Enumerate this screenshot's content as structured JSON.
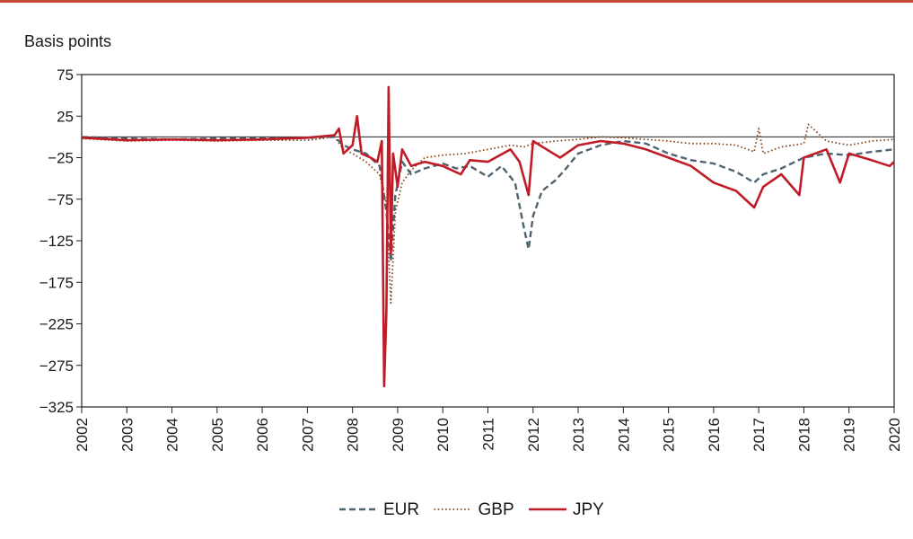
{
  "chart_data": {
    "type": "line",
    "ylabel": "Basis points",
    "ylim": [
      -325,
      75
    ],
    "yticks": [
      75,
      25,
      -25,
      -75,
      -125,
      -175,
      -225,
      -275,
      -325
    ],
    "xlim": [
      2002,
      2020
    ],
    "xticks": [
      "2002",
      "2003",
      "2004",
      "2005",
      "2006",
      "2007",
      "2008",
      "2009",
      "2010",
      "2011",
      "2012",
      "2013",
      "2014",
      "2015",
      "2016",
      "2017",
      "2018",
      "2019",
      "2020"
    ],
    "zero_line": 0,
    "grid": false,
    "legend_position": "bottom",
    "series": [
      {
        "name": "EUR",
        "color": "#4f6470",
        "style": "dashed",
        "points": [
          [
            2002,
            0
          ],
          [
            2003,
            -2
          ],
          [
            2004,
            -3
          ],
          [
            2005,
            -2
          ],
          [
            2006,
            -2
          ],
          [
            2007,
            -1
          ],
          [
            2007.6,
            0
          ],
          [
            2007.8,
            -10
          ],
          [
            2008.0,
            -15
          ],
          [
            2008.3,
            -20
          ],
          [
            2008.6,
            -35
          ],
          [
            2008.75,
            -90
          ],
          [
            2008.85,
            -150
          ],
          [
            2008.95,
            -70
          ],
          [
            2009.1,
            -30
          ],
          [
            2009.3,
            -45
          ],
          [
            2009.6,
            -38
          ],
          [
            2010.0,
            -32
          ],
          [
            2010.3,
            -38
          ],
          [
            2010.6,
            -35
          ],
          [
            2011.0,
            -48
          ],
          [
            2011.3,
            -35
          ],
          [
            2011.6,
            -55
          ],
          [
            2011.8,
            -110
          ],
          [
            2011.9,
            -135
          ],
          [
            2012.0,
            -95
          ],
          [
            2012.2,
            -65
          ],
          [
            2012.5,
            -52
          ],
          [
            2012.7,
            -40
          ],
          [
            2013.0,
            -20
          ],
          [
            2013.5,
            -10
          ],
          [
            2014.0,
            -5
          ],
          [
            2014.5,
            -8
          ],
          [
            2015.0,
            -20
          ],
          [
            2015.5,
            -28
          ],
          [
            2016.0,
            -32
          ],
          [
            2016.5,
            -42
          ],
          [
            2016.9,
            -55
          ],
          [
            2017.1,
            -45
          ],
          [
            2017.5,
            -38
          ],
          [
            2018.0,
            -25
          ],
          [
            2018.5,
            -20
          ],
          [
            2019.0,
            -22
          ],
          [
            2019.5,
            -18
          ],
          [
            2020.0,
            -15
          ]
        ]
      },
      {
        "name": "GBP",
        "color": "#8a4a1c",
        "style": "dotted",
        "points": [
          [
            2002,
            -2
          ],
          [
            2003,
            -5
          ],
          [
            2004,
            -4
          ],
          [
            2005,
            -5
          ],
          [
            2006,
            -4
          ],
          [
            2007,
            -4
          ],
          [
            2007.6,
            0
          ],
          [
            2007.8,
            -15
          ],
          [
            2008.0,
            -20
          ],
          [
            2008.3,
            -30
          ],
          [
            2008.6,
            -45
          ],
          [
            2008.75,
            -80
          ],
          [
            2008.85,
            -200
          ],
          [
            2008.95,
            -90
          ],
          [
            2009.1,
            -55
          ],
          [
            2009.3,
            -40
          ],
          [
            2009.6,
            -25
          ],
          [
            2010.0,
            -22
          ],
          [
            2010.5,
            -20
          ],
          [
            2011.0,
            -15
          ],
          [
            2011.5,
            -10
          ],
          [
            2011.8,
            -12
          ],
          [
            2012.0,
            -8
          ],
          [
            2012.5,
            -5
          ],
          [
            2013.0,
            -3
          ],
          [
            2013.5,
            0
          ],
          [
            2014.0,
            -1
          ],
          [
            2014.5,
            -3
          ],
          [
            2015.0,
            -5
          ],
          [
            2015.5,
            -8
          ],
          [
            2016.0,
            -8
          ],
          [
            2016.5,
            -10
          ],
          [
            2016.9,
            -18
          ],
          [
            2017.0,
            10
          ],
          [
            2017.1,
            -20
          ],
          [
            2017.5,
            -12
          ],
          [
            2018.0,
            -8
          ],
          [
            2018.1,
            15
          ],
          [
            2018.5,
            -5
          ],
          [
            2019.0,
            -10
          ],
          [
            2019.5,
            -5
          ],
          [
            2020.0,
            -3
          ]
        ]
      },
      {
        "name": "JPY",
        "color": "#c01c28",
        "style": "solid",
        "points": [
          [
            2002,
            -1
          ],
          [
            2003,
            -4
          ],
          [
            2004,
            -3
          ],
          [
            2005,
            -4
          ],
          [
            2006,
            -3
          ],
          [
            2007,
            -1
          ],
          [
            2007.6,
            2
          ],
          [
            2007.7,
            10
          ],
          [
            2007.8,
            -20
          ],
          [
            2008.0,
            -10
          ],
          [
            2008.1,
            25
          ],
          [
            2008.2,
            -20
          ],
          [
            2008.4,
            -25
          ],
          [
            2008.55,
            -30
          ],
          [
            2008.65,
            -5
          ],
          [
            2008.7,
            -300
          ],
          [
            2008.75,
            -210
          ],
          [
            2008.8,
            60
          ],
          [
            2008.85,
            -140
          ],
          [
            2008.9,
            -20
          ],
          [
            2009.0,
            -60
          ],
          [
            2009.1,
            -15
          ],
          [
            2009.3,
            -35
          ],
          [
            2009.6,
            -30
          ],
          [
            2010.0,
            -35
          ],
          [
            2010.4,
            -45
          ],
          [
            2010.6,
            -28
          ],
          [
            2011.0,
            -30
          ],
          [
            2011.5,
            -15
          ],
          [
            2011.7,
            -30
          ],
          [
            2011.9,
            -70
          ],
          [
            2012.0,
            -5
          ],
          [
            2012.3,
            -15
          ],
          [
            2012.6,
            -25
          ],
          [
            2013.0,
            -10
          ],
          [
            2013.5,
            -5
          ],
          [
            2014.0,
            -8
          ],
          [
            2014.5,
            -15
          ],
          [
            2015.0,
            -25
          ],
          [
            2015.5,
            -35
          ],
          [
            2016.0,
            -55
          ],
          [
            2016.5,
            -65
          ],
          [
            2016.9,
            -85
          ],
          [
            2017.1,
            -60
          ],
          [
            2017.5,
            -45
          ],
          [
            2017.9,
            -70
          ],
          [
            2018.0,
            -25
          ],
          [
            2018.5,
            -15
          ],
          [
            2018.8,
            -55
          ],
          [
            2019.0,
            -20
          ],
          [
            2019.5,
            -28
          ],
          [
            2019.9,
            -35
          ],
          [
            2020.0,
            -30
          ]
        ]
      }
    ]
  }
}
